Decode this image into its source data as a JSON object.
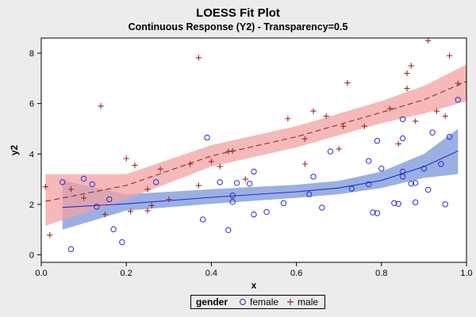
{
  "chart_data": {
    "type": "scatter",
    "title": "LOESS Fit Plot",
    "subtitle": "Continuous Response (Y2) - Transparency=0.5",
    "xlabel": "x",
    "ylabel": "y2",
    "xlim": [
      0,
      1
    ],
    "ylim": [
      -0.3,
      8.6
    ],
    "x_ticks": [
      "0.0",
      "0.2",
      "0.4",
      "0.6",
      "0.8",
      "1.0"
    ],
    "y_ticks": [
      "0",
      "2",
      "4",
      "6",
      "8"
    ],
    "legend": {
      "title": "gender",
      "entries": [
        "female",
        "male"
      ],
      "position": "bottom-center"
    },
    "series": [
      {
        "name": "female",
        "marker": "circle",
        "color": "#2b2bd1",
        "band_color": "#7a95d8",
        "points": [
          [
            0.05,
            2.88
          ],
          [
            0.07,
            0.22
          ],
          [
            0.1,
            3.02
          ],
          [
            0.12,
            2.8
          ],
          [
            0.13,
            1.91
          ],
          [
            0.16,
            2.2
          ],
          [
            0.17,
            1.01
          ],
          [
            0.19,
            0.5
          ],
          [
            0.27,
            2.88
          ],
          [
            0.38,
            1.4
          ],
          [
            0.39,
            4.65
          ],
          [
            0.42,
            2.88
          ],
          [
            0.44,
            0.98
          ],
          [
            0.45,
            2.1
          ],
          [
            0.45,
            2.35
          ],
          [
            0.46,
            2.85
          ],
          [
            0.49,
            2.82
          ],
          [
            0.5,
            1.6
          ],
          [
            0.5,
            3.3
          ],
          [
            0.53,
            1.7
          ],
          [
            0.57,
            2.05
          ],
          [
            0.63,
            2.4
          ],
          [
            0.64,
            3.1
          ],
          [
            0.66,
            1.87
          ],
          [
            0.68,
            4.1
          ],
          [
            0.73,
            2.62
          ],
          [
            0.77,
            3.72
          ],
          [
            0.77,
            2.8
          ],
          [
            0.78,
            1.68
          ],
          [
            0.79,
            1.65
          ],
          [
            0.79,
            4.52
          ],
          [
            0.8,
            3.42
          ],
          [
            0.83,
            2.05
          ],
          [
            0.84,
            2.02
          ],
          [
            0.85,
            5.38
          ],
          [
            0.85,
            3.3
          ],
          [
            0.85,
            4.62
          ],
          [
            0.85,
            3.1
          ],
          [
            0.87,
            2.82
          ],
          [
            0.88,
            2.08
          ],
          [
            0.88,
            2.85
          ],
          [
            0.9,
            3.42
          ],
          [
            0.91,
            2.58
          ],
          [
            0.92,
            4.85
          ],
          [
            0.94,
            3.6
          ],
          [
            0.95,
            2.0
          ],
          [
            0.96,
            4.68
          ],
          [
            0.98,
            6.15
          ]
        ],
        "fit": [
          [
            0.05,
            1.88
          ],
          [
            0.2,
            2.02
          ],
          [
            0.4,
            2.28
          ],
          [
            0.6,
            2.5
          ],
          [
            0.7,
            2.65
          ],
          [
            0.8,
            2.95
          ],
          [
            0.9,
            3.5
          ],
          [
            0.98,
            4.12
          ]
        ],
        "band_lower": [
          [
            0.05,
            1.0
          ],
          [
            0.2,
            1.75
          ],
          [
            0.4,
            2.02
          ],
          [
            0.6,
            2.26
          ],
          [
            0.7,
            2.4
          ],
          [
            0.8,
            2.65
          ],
          [
            0.9,
            3.05
          ],
          [
            0.98,
            3.2
          ]
        ],
        "band_upper": [
          [
            0.05,
            2.95
          ],
          [
            0.2,
            2.4
          ],
          [
            0.4,
            2.6
          ],
          [
            0.6,
            2.78
          ],
          [
            0.7,
            2.93
          ],
          [
            0.8,
            3.3
          ],
          [
            0.9,
            4.0
          ],
          [
            0.98,
            5.0
          ]
        ]
      },
      {
        "name": "male",
        "marker": "plus",
        "color": "#9b2828",
        "band_color": "#f2a1a1",
        "points": [
          [
            0.01,
            2.7
          ],
          [
            0.02,
            0.78
          ],
          [
            0.07,
            2.6
          ],
          [
            0.1,
            2.25
          ],
          [
            0.14,
            5.9
          ],
          [
            0.15,
            1.6
          ],
          [
            0.2,
            3.82
          ],
          [
            0.21,
            1.72
          ],
          [
            0.22,
            3.55
          ],
          [
            0.25,
            2.6
          ],
          [
            0.25,
            1.75
          ],
          [
            0.26,
            1.95
          ],
          [
            0.28,
            3.4
          ],
          [
            0.3,
            2.2
          ],
          [
            0.35,
            3.6
          ],
          [
            0.37,
            7.82
          ],
          [
            0.37,
            2.75
          ],
          [
            0.4,
            3.7
          ],
          [
            0.42,
            3.5
          ],
          [
            0.44,
            4.1
          ],
          [
            0.45,
            4.12
          ],
          [
            0.48,
            3.0
          ],
          [
            0.58,
            5.4
          ],
          [
            0.62,
            4.6
          ],
          [
            0.62,
            3.6
          ],
          [
            0.64,
            5.7
          ],
          [
            0.67,
            5.5
          ],
          [
            0.7,
            4.2
          ],
          [
            0.71,
            5.1
          ],
          [
            0.72,
            6.82
          ],
          [
            0.76,
            5.1
          ],
          [
            0.82,
            5.8
          ],
          [
            0.84,
            4.4
          ],
          [
            0.86,
            6.6
          ],
          [
            0.86,
            7.2
          ],
          [
            0.87,
            7.5
          ],
          [
            0.88,
            5.3
          ],
          [
            0.91,
            8.5
          ],
          [
            0.93,
            5.7
          ],
          [
            0.95,
            5.5
          ],
          [
            0.96,
            7.9
          ],
          [
            0.98,
            6.8
          ]
        ],
        "fit": [
          [
            0.01,
            2.12
          ],
          [
            0.2,
            2.75
          ],
          [
            0.4,
            3.92
          ],
          [
            0.6,
            4.68
          ],
          [
            0.8,
            5.65
          ],
          [
            0.9,
            6.15
          ],
          [
            1.0,
            6.88
          ]
        ],
        "band_lower": [
          [
            0.01,
            1.15
          ],
          [
            0.2,
            2.2
          ],
          [
            0.4,
            3.5
          ],
          [
            0.6,
            4.26
          ],
          [
            0.8,
            5.22
          ],
          [
            0.9,
            5.6
          ],
          [
            1.0,
            6.1
          ]
        ],
        "band_upper": [
          [
            0.01,
            3.2
          ],
          [
            0.2,
            3.2
          ],
          [
            0.4,
            4.35
          ],
          [
            0.6,
            5.1
          ],
          [
            0.8,
            6.1
          ],
          [
            0.9,
            6.7
          ],
          [
            1.0,
            7.55
          ]
        ]
      }
    ]
  }
}
